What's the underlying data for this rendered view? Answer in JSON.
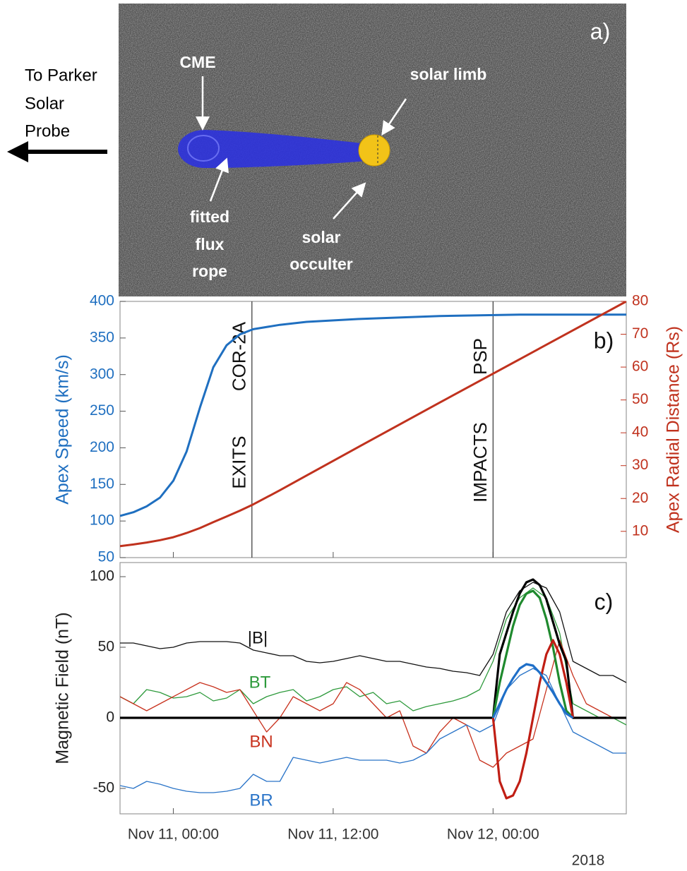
{
  "image_panel": {
    "panel_label": "a)",
    "labels": {
      "cme": "CME",
      "solar_limb": "solar limb",
      "flux_rope": [
        "fitted",
        "flux",
        "rope"
      ],
      "occulter": [
        "solar",
        "occulter"
      ],
      "direction": [
        "To Parker",
        "Solar",
        "Probe"
      ]
    }
  },
  "chart_data": [
    {
      "type": "line",
      "panel_label": "b)",
      "y_label": "Apex Speed (km/s)",
      "y2_label": "Apex Radial Distance (Rs)",
      "xlim": [
        -4,
        34
      ],
      "ylim": [
        50,
        400
      ],
      "yticks": [
        50,
        100,
        150,
        200,
        250,
        300,
        350,
        400
      ],
      "y2lim": [
        2,
        80
      ],
      "y2ticks": [
        10,
        20,
        30,
        40,
        50,
        60,
        70,
        80
      ],
      "x": [
        -4,
        -3,
        -2,
        -1,
        0,
        1,
        2,
        3,
        4,
        5,
        6,
        8,
        10,
        14,
        20,
        26,
        34
      ],
      "series": [
        {
          "color": "#1f6fc0",
          "values": [
            107,
            112,
            120,
            132,
            155,
            195,
            255,
            310,
            340,
            355,
            362,
            368,
            372,
            376,
            380,
            382,
            382
          ]
        },
        {
          "color": "#c0321e",
          "axis": "y2",
          "values": [
            5.5,
            6,
            6.6,
            7.3,
            8.2,
            9.5,
            11,
            12.8,
            14.5,
            16.3,
            18.2,
            22.5,
            27,
            35.9,
            49.2,
            62.4,
            80
          ]
        }
      ],
      "annotations": [
        {
          "x": 5.9,
          "lines": [
            "EXITS",
            "COR-2A"
          ]
        },
        {
          "x": 24,
          "lines": [
            "IMPACTS",
            "PSP"
          ]
        }
      ]
    },
    {
      "type": "line",
      "panel_label": "c)",
      "y_label": "Magnetic Field (nT)",
      "xlim": [
        -4,
        34
      ],
      "xticks": [
        {
          "value": 0,
          "label": "Nov 11, 00:00"
        },
        {
          "value": 12,
          "label": "Nov 11, 12:00"
        },
        {
          "value": 24,
          "label": "Nov 12, 00:00"
        }
      ],
      "x_note": "2018",
      "ylim": [
        -68,
        110
      ],
      "yticks": [
        -50,
        0,
        50,
        100
      ],
      "x": [
        -4,
        -3,
        -2,
        -1,
        0,
        1,
        2,
        3,
        4,
        5,
        6,
        7,
        8,
        9,
        10,
        11,
        12,
        13,
        14,
        15,
        16,
        17,
        18,
        19,
        20,
        21,
        22,
        23,
        24,
        25,
        26,
        27,
        28,
        29,
        30,
        31,
        32,
        33,
        34
      ],
      "series": [
        {
          "name": "|B|",
          "color": "#111111",
          "values": [
            53,
            53,
            51,
            49,
            50,
            53,
            54,
            54,
            54,
            53,
            48,
            46,
            44,
            44,
            40,
            39,
            40,
            42,
            44,
            42,
            40,
            40,
            38,
            36,
            35,
            33,
            32,
            30,
            45,
            75,
            90,
            96,
            92,
            75,
            40,
            35,
            30,
            30,
            25
          ]
        },
        {
          "name": "BT",
          "color": "#2e9a3c",
          "values": [
            15,
            10,
            20,
            18,
            14,
            15,
            18,
            12,
            14,
            20,
            10,
            15,
            18,
            20,
            12,
            15,
            20,
            22,
            15,
            18,
            10,
            12,
            5,
            8,
            10,
            12,
            15,
            20,
            40,
            70,
            85,
            92,
            85,
            60,
            10,
            5,
            0,
            0,
            -5
          ]
        },
        {
          "name": "BN",
          "color": "#c8321e",
          "values": [
            15,
            10,
            5,
            10,
            15,
            20,
            25,
            22,
            18,
            20,
            5,
            -10,
            0,
            15,
            10,
            5,
            10,
            25,
            20,
            10,
            0,
            5,
            -20,
            -25,
            -10,
            0,
            -5,
            -30,
            -35,
            -25,
            -20,
            -15,
            20,
            55,
            30,
            10,
            5,
            0,
            0
          ]
        },
        {
          "name": "BR",
          "color": "#2a74c8",
          "values": [
            -48,
            -50,
            -45,
            -47,
            -50,
            -52,
            -53,
            -53,
            -52,
            -50,
            -40,
            -45,
            -45,
            -28,
            -30,
            -32,
            -30,
            -28,
            -30,
            -30,
            -30,
            -32,
            -30,
            -25,
            -15,
            -10,
            -5,
            -10,
            -5,
            20,
            30,
            35,
            30,
            10,
            -10,
            -15,
            -20,
            -25,
            -25
          ]
        }
      ],
      "fit": {
        "x": [
          -4,
          24,
          24.5,
          25,
          25.5,
          26,
          26.5,
          27,
          27.5,
          28,
          28.5,
          29,
          29.5,
          30,
          34
        ],
        "series": [
          {
            "color": "#000000",
            "values": [
              0,
              0,
              45,
              60,
              75,
              88,
              96,
              98,
              94,
              84,
              68,
              52,
              40,
              0,
              0
            ]
          },
          {
            "color": "#1f8a2e",
            "values": [
              null,
              0,
              25,
              45,
              65,
              80,
              88,
              90,
              85,
              70,
              50,
              25,
              5,
              0,
              null
            ]
          },
          {
            "color": "#c01e14",
            "values": [
              null,
              0,
              -45,
              -57,
              -55,
              -45,
              -25,
              0,
              25,
              45,
              55,
              45,
              25,
              0,
              null
            ]
          },
          {
            "color": "#1f6fc8",
            "values": [
              null,
              0,
              10,
              20,
              28,
              35,
              38,
              37,
              32,
              25,
              18,
              10,
              3,
              0,
              null
            ]
          }
        ]
      }
    }
  ]
}
